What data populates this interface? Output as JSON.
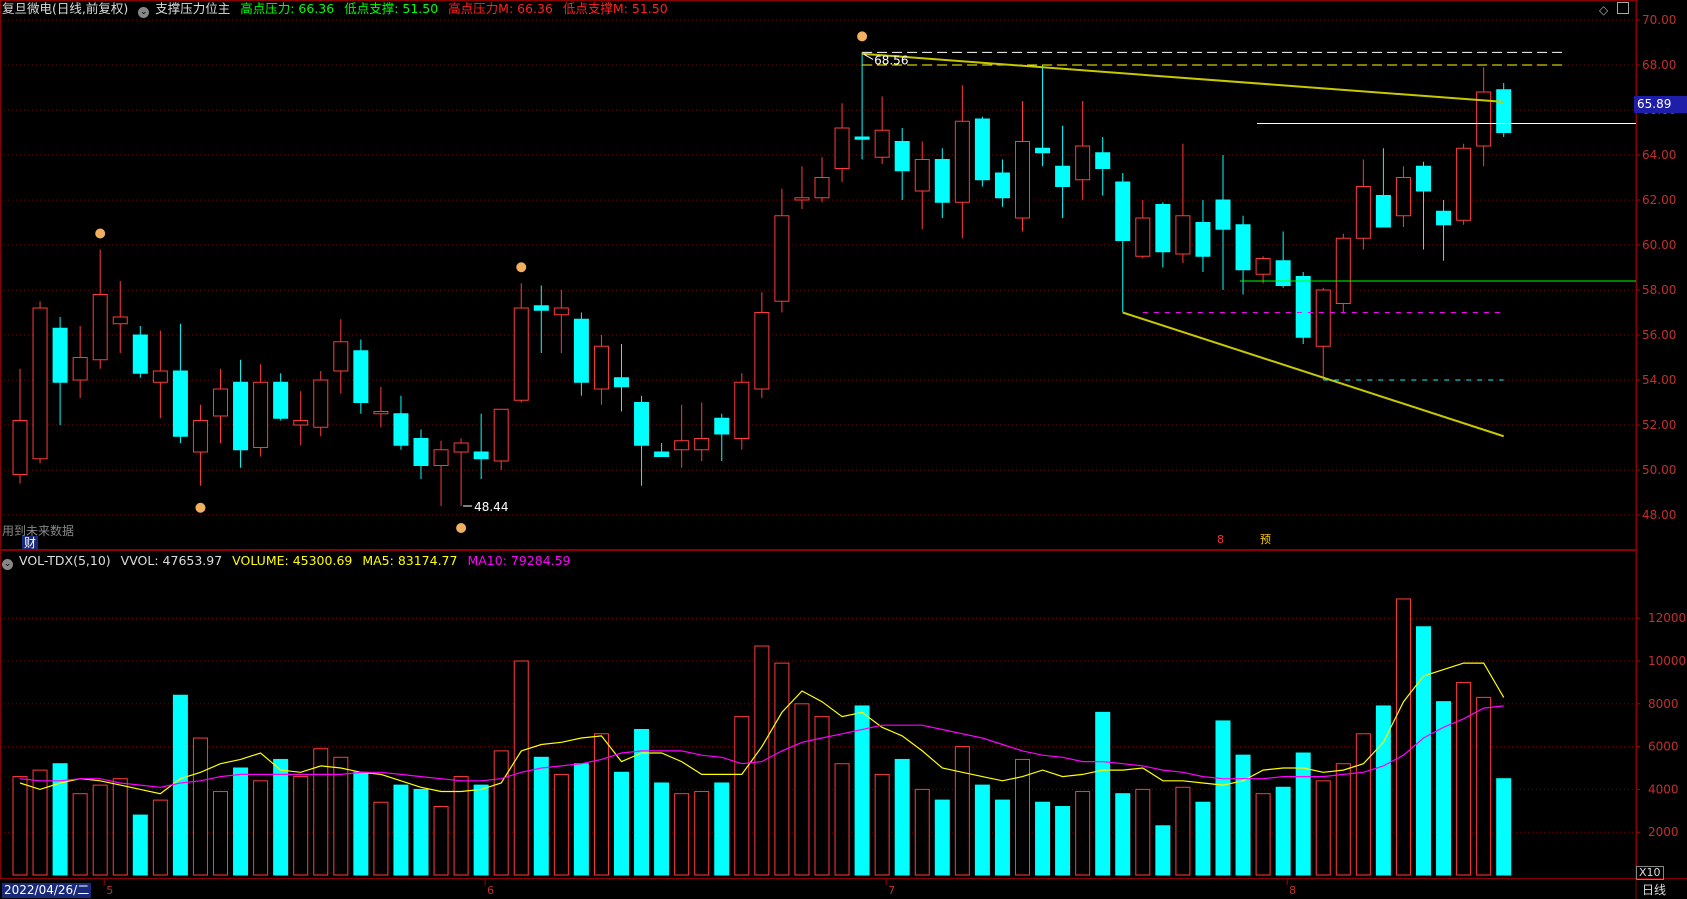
{
  "header": {
    "stock": "复旦微电",
    "mode": "(日线,前复权)",
    "indicator": "支撑压力位主",
    "items": [
      {
        "label": "高点压力: 66.36",
        "color": "#00ff00"
      },
      {
        "label": "低点支撑: 51.50",
        "color": "#00ff00"
      },
      {
        "label": "高点压力M: 66.36",
        "color": "#ff2020"
      },
      {
        "label": "低点支撑M: 51.50",
        "color": "#ff2020"
      }
    ]
  },
  "vol_header": {
    "name": "VOL-TDX(5,10)",
    "vvol": "VVOL: 47653.97",
    "volume": "VOLUME: 45300.69",
    "ma5": "MA5: 83174.77",
    "ma10": "MA10: 79284.59"
  },
  "price_axis": {
    "ticks": [
      "70.00",
      "68.00",
      "66.00",
      "64.00",
      "62.00",
      "60.00",
      "58.00",
      "56.00",
      "54.00",
      "52.00",
      "50.00",
      "48.00"
    ],
    "current": "65.89"
  },
  "vol_axis": {
    "ticks": [
      "12000",
      "10000",
      "8000",
      "6000",
      "4000",
      "2000"
    ],
    "multiplier": "X10"
  },
  "annotations": {
    "high": "68.56",
    "low": "48.44",
    "future_note": "用到未来数据",
    "fin": "财",
    "event1": "8",
    "event2": "预"
  },
  "months": [
    "5",
    "6",
    "7",
    "8"
  ],
  "footer": {
    "date": "2022/04/26/二",
    "period": "日线"
  },
  "colors": {
    "up": "#ff3a3a",
    "down": "#00ffff",
    "ma5": "#ffff00",
    "ma10": "#ff00ff",
    "grid": "#7a0000"
  },
  "chart_data": {
    "type": "candlestick",
    "title": "复旦微电 (日线,前复权)",
    "ylim": [
      47,
      71
    ],
    "candles": [
      {
        "o": 49.8,
        "h": 54.5,
        "l": 49.4,
        "c": 52.2
      },
      {
        "o": 50.5,
        "h": 57.5,
        "l": 50.3,
        "c": 57.2
      },
      {
        "o": 56.3,
        "h": 56.8,
        "l": 52.0,
        "c": 53.9
      },
      {
        "o": 54.0,
        "h": 56.4,
        "l": 53.2,
        "c": 55.0
      },
      {
        "o": 54.9,
        "h": 59.8,
        "l": 54.5,
        "c": 57.8
      },
      {
        "o": 56.5,
        "h": 58.4,
        "l": 55.2,
        "c": 56.8
      },
      {
        "o": 56.0,
        "h": 56.4,
        "l": 54.1,
        "c": 54.3
      },
      {
        "o": 53.9,
        "h": 56.2,
        "l": 52.3,
        "c": 54.4
      },
      {
        "o": 54.4,
        "h": 56.5,
        "l": 51.2,
        "c": 51.5
      },
      {
        "o": 50.8,
        "h": 52.9,
        "l": 49.3,
        "c": 52.2
      },
      {
        "o": 52.4,
        "h": 54.5,
        "l": 51.2,
        "c": 53.6
      },
      {
        "o": 53.9,
        "h": 54.9,
        "l": 50.1,
        "c": 50.9
      },
      {
        "o": 51.0,
        "h": 54.7,
        "l": 50.6,
        "c": 53.9
      },
      {
        "o": 53.9,
        "h": 54.3,
        "l": 52.2,
        "c": 52.3
      },
      {
        "o": 52.0,
        "h": 53.5,
        "l": 51.1,
        "c": 52.2
      },
      {
        "o": 51.9,
        "h": 54.4,
        "l": 51.5,
        "c": 54.0
      },
      {
        "o": 54.4,
        "h": 56.7,
        "l": 53.4,
        "c": 55.7
      },
      {
        "o": 55.3,
        "h": 55.8,
        "l": 52.5,
        "c": 53.0
      },
      {
        "o": 52.5,
        "h": 53.7,
        "l": 51.9,
        "c": 52.6
      },
      {
        "o": 52.5,
        "h": 53.3,
        "l": 50.9,
        "c": 51.1
      },
      {
        "o": 51.4,
        "h": 51.8,
        "l": 49.6,
        "c": 50.2
      },
      {
        "o": 50.2,
        "h": 51.3,
        "l": 48.4,
        "c": 50.9
      },
      {
        "o": 50.8,
        "h": 51.4,
        "l": 48.4,
        "c": 51.2
      },
      {
        "o": 50.8,
        "h": 52.5,
        "l": 49.6,
        "c": 50.5
      },
      {
        "o": 50.4,
        "h": 52.6,
        "l": 50.0,
        "c": 52.7
      },
      {
        "o": 53.1,
        "h": 58.3,
        "l": 53.0,
        "c": 57.2
      },
      {
        "o": 57.3,
        "h": 58.2,
        "l": 55.2,
        "c": 57.1
      },
      {
        "o": 56.9,
        "h": 58.0,
        "l": 55.2,
        "c": 57.2
      },
      {
        "o": 56.7,
        "h": 57.0,
        "l": 53.3,
        "c": 53.9
      },
      {
        "o": 53.6,
        "h": 56.0,
        "l": 52.9,
        "c": 55.5
      },
      {
        "o": 54.1,
        "h": 55.6,
        "l": 52.6,
        "c": 53.7
      },
      {
        "o": 53.0,
        "h": 53.3,
        "l": 49.3,
        "c": 51.1
      },
      {
        "o": 50.8,
        "h": 51.2,
        "l": 50.6,
        "c": 50.6
      },
      {
        "o": 50.9,
        "h": 52.9,
        "l": 50.1,
        "c": 51.3
      },
      {
        "o": 50.9,
        "h": 53.0,
        "l": 50.4,
        "c": 51.4
      },
      {
        "o": 52.3,
        "h": 52.5,
        "l": 50.4,
        "c": 51.6
      },
      {
        "o": 51.4,
        "h": 54.3,
        "l": 50.9,
        "c": 53.9
      },
      {
        "o": 53.6,
        "h": 57.9,
        "l": 53.2,
        "c": 57.0
      },
      {
        "o": 57.5,
        "h": 62.5,
        "l": 57.0,
        "c": 61.3
      },
      {
        "o": 62.0,
        "h": 63.5,
        "l": 61.6,
        "c": 62.1
      },
      {
        "o": 62.1,
        "h": 63.9,
        "l": 61.9,
        "c": 63.0
      },
      {
        "o": 63.4,
        "h": 66.3,
        "l": 62.8,
        "c": 65.2
      },
      {
        "o": 64.8,
        "h": 68.56,
        "l": 63.8,
        "c": 64.7
      },
      {
        "o": 63.9,
        "h": 66.6,
        "l": 63.6,
        "c": 65.1
      },
      {
        "o": 64.6,
        "h": 65.2,
        "l": 62.0,
        "c": 63.3
      },
      {
        "o": 62.4,
        "h": 64.6,
        "l": 60.7,
        "c": 63.8
      },
      {
        "o": 63.8,
        "h": 64.3,
        "l": 61.2,
        "c": 61.9
      },
      {
        "o": 61.9,
        "h": 67.1,
        "l": 60.3,
        "c": 65.5
      },
      {
        "o": 65.6,
        "h": 65.7,
        "l": 62.6,
        "c": 62.9
      },
      {
        "o": 63.2,
        "h": 63.8,
        "l": 61.7,
        "c": 62.1
      },
      {
        "o": 61.2,
        "h": 66.4,
        "l": 60.6,
        "c": 64.6
      },
      {
        "o": 64.3,
        "h": 68.0,
        "l": 63.5,
        "c": 64.1
      },
      {
        "o": 63.5,
        "h": 65.3,
        "l": 61.2,
        "c": 62.6
      },
      {
        "o": 62.9,
        "h": 66.4,
        "l": 62.0,
        "c": 64.4
      },
      {
        "o": 64.1,
        "h": 64.8,
        "l": 62.2,
        "c": 63.4
      },
      {
        "o": 62.8,
        "h": 63.2,
        "l": 57.0,
        "c": 60.2
      },
      {
        "o": 59.5,
        "h": 62.0,
        "l": 59.4,
        "c": 61.2
      },
      {
        "o": 61.8,
        "h": 61.9,
        "l": 59.0,
        "c": 59.7
      },
      {
        "o": 59.6,
        "h": 64.5,
        "l": 59.2,
        "c": 61.3
      },
      {
        "o": 61.0,
        "h": 62.0,
        "l": 58.8,
        "c": 59.5
      },
      {
        "o": 62.0,
        "h": 64.0,
        "l": 58.0,
        "c": 60.7
      },
      {
        "o": 60.9,
        "h": 61.3,
        "l": 57.8,
        "c": 58.9
      },
      {
        "o": 58.7,
        "h": 59.5,
        "l": 58.3,
        "c": 59.4
      },
      {
        "o": 59.3,
        "h": 60.6,
        "l": 58.1,
        "c": 58.2
      },
      {
        "o": 58.6,
        "h": 58.8,
        "l": 55.6,
        "c": 55.9
      },
      {
        "o": 55.5,
        "h": 58.1,
        "l": 54.0,
        "c": 58.0
      },
      {
        "o": 57.4,
        "h": 60.5,
        "l": 57.0,
        "c": 60.3
      },
      {
        "o": 60.3,
        "h": 63.8,
        "l": 59.8,
        "c": 62.6
      },
      {
        "o": 62.2,
        "h": 64.3,
        "l": 60.9,
        "c": 60.8
      },
      {
        "o": 61.3,
        "h": 63.5,
        "l": 60.8,
        "c": 63.0
      },
      {
        "o": 63.5,
        "h": 63.7,
        "l": 59.8,
        "c": 62.4
      },
      {
        "o": 61.5,
        "h": 62.0,
        "l": 59.3,
        "c": 60.9
      },
      {
        "o": 61.1,
        "h": 64.5,
        "l": 60.9,
        "c": 64.3
      },
      {
        "o": 64.4,
        "h": 67.9,
        "l": 63.5,
        "c": 66.8
      },
      {
        "o": 66.9,
        "h": 67.2,
        "l": 64.8,
        "c": 65.0
      }
    ],
    "volume": [
      4600,
      4900,
      5200,
      3800,
      4200,
      4500,
      2800,
      3500,
      8400,
      6400,
      3900,
      5000,
      4400,
      5400,
      4600,
      5900,
      5500,
      4800,
      3400,
      4200,
      4000,
      3200,
      4600,
      4200,
      5800,
      10000,
      5500,
      4700,
      5200,
      6600,
      4800,
      6800,
      4300,
      3800,
      3900,
      4300,
      7400,
      10700,
      9900,
      8000,
      7400,
      5200,
      7900,
      4700,
      5400,
      4000,
      3500,
      6000,
      4200,
      3500,
      5400,
      3400,
      3200,
      3900,
      7600,
      3800,
      4000,
      2300,
      4100,
      3400,
      7200,
      5600,
      3800,
      4100,
      5700,
      4400,
      5200,
      6600,
      7900,
      12900,
      11600,
      8100,
      9000,
      8300,
      4500
    ],
    "ma5": [
      4300,
      4000,
      4300,
      4500,
      4400,
      4200,
      4000,
      3800,
      4500,
      4800,
      5200,
      5400,
      5700,
      4900,
      4800,
      5100,
      5000,
      4800,
      4700,
      4400,
      4100,
      3900,
      3900,
      4000,
      4300,
      5800,
      6100,
      6200,
      6400,
      6500,
      5300,
      5700,
      5700,
      5300,
      4700,
      4700,
      4700,
      6000,
      7600,
      8600,
      8100,
      7400,
      7600,
      6900,
      6500,
      5800,
      5000,
      4800,
      4600,
      4400,
      4600,
      4900,
      4600,
      4700,
      4900,
      4900,
      5000,
      4400,
      4400,
      4300,
      4200,
      4400,
      4900,
      5000,
      5000,
      4800,
      4900,
      5200,
      6200,
      8100,
      9300,
      9600,
      9900,
      9900,
      8300
    ],
    "ma10": [
      4500,
      4400,
      4400,
      4500,
      4500,
      4300,
      4200,
      4100,
      4300,
      4400,
      4600,
      4700,
      4700,
      4700,
      4700,
      4700,
      4700,
      4800,
      4800,
      4700,
      4600,
      4500,
      4400,
      4400,
      4500,
      4800,
      5000,
      5100,
      5200,
      5400,
      5700,
      5800,
      5800,
      5800,
      5600,
      5500,
      5200,
      5300,
      5800,
      6200,
      6400,
      6600,
      6800,
      7000,
      7000,
      7000,
      6800,
      6600,
      6400,
      6100,
      5800,
      5600,
      5500,
      5300,
      5300,
      5200,
      5100,
      4900,
      4800,
      4600,
      4500,
      4500,
      4500,
      4600,
      4600,
      4600,
      4700,
      4800,
      5100,
      5600,
      6400,
      6900,
      7300,
      7800,
      7900
    ]
  }
}
